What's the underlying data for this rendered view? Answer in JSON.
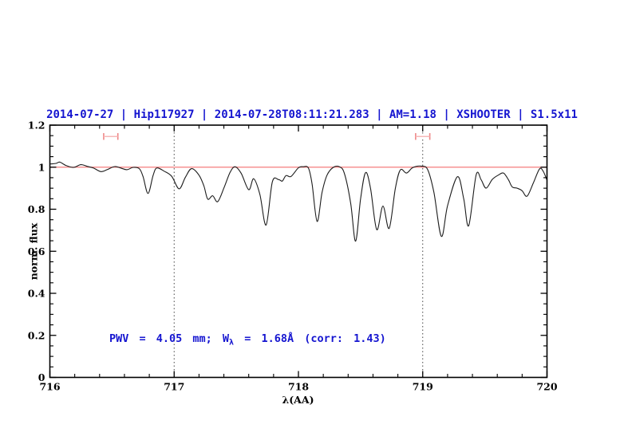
{
  "page": {
    "background": "#ffffff"
  },
  "title": {
    "text": "2014-07-27 | Hip117927 | 2014-07-28T08:11:21.283 | AM=1.18 | XSHOOTER | S1.5x11",
    "color": "#1515d0"
  },
  "annotation": {
    "text_before_sub": "PWV = 4.05 mm; W",
    "subscript": "λ",
    "text_after_sub": " = 1.68Å (corr: 1.43)",
    "color": "#1515d0"
  },
  "colors": {
    "accent_blue": "#1515d0",
    "continuum_red": "#f47c7c",
    "marker_red": "#ee8686",
    "marker_bar_red": "#f6b8b8",
    "spectrum_line": "#1c1c1c",
    "guide_line": "#444444",
    "axis": "#000000"
  },
  "chart_data": {
    "type": "line",
    "title": "2014-07-27 | Hip117927 | 2014-07-28T08:11:21.283 | AM=1.18 | XSHOOTER | S1.5x11",
    "xlabel": "λ(AA)",
    "ylabel": "norm. flux",
    "xlim": [
      716,
      720
    ],
    "ylim": [
      0,
      1.2
    ],
    "x_major_ticks": [
      716,
      717,
      718,
      719,
      720
    ],
    "x_tick_labels": [
      "716",
      "717",
      "718",
      "719",
      "720"
    ],
    "x_minor_step": 0.2,
    "y_major_ticks": [
      0,
      0.2,
      0.4,
      0.6,
      0.8,
      1,
      1.2
    ],
    "y_tick_labels": [
      "0",
      "0.2",
      "0.4",
      "0.6",
      "0.8",
      "1",
      "1.2"
    ],
    "y_minor_step": 0.05,
    "grid": false,
    "legend": null,
    "guide_lines_x": [
      717,
      719
    ],
    "continuum_line_y": 1.0,
    "markers": [
      {
        "x": 716.49,
        "xerr": 0.057,
        "y": 1.146,
        "cap_half_height": 0.016
      },
      {
        "x": 719.0,
        "xerr": 0.057,
        "y": 1.146,
        "cap_half_height": 0.016
      }
    ],
    "series": [
      {
        "name": "normalized spectrum",
        "points": [
          [
            716.0,
            1.015
          ],
          [
            716.05,
            1.018
          ],
          [
            716.08,
            1.024
          ],
          [
            716.13,
            1.008
          ],
          [
            716.19,
            0.999
          ],
          [
            716.25,
            1.012
          ],
          [
            716.3,
            1.004
          ],
          [
            716.35,
            0.996
          ],
          [
            716.41,
            0.979
          ],
          [
            716.46,
            0.988
          ],
          [
            716.52,
            1.003
          ],
          [
            716.57,
            0.996
          ],
          [
            716.62,
            0.988
          ],
          [
            716.67,
            0.999
          ],
          [
            716.72,
            0.993
          ],
          [
            716.75,
            0.955
          ],
          [
            716.79,
            0.875
          ],
          [
            716.83,
            0.96
          ],
          [
            716.86,
            0.996
          ],
          [
            716.92,
            0.981
          ],
          [
            716.98,
            0.957
          ],
          [
            717.04,
            0.897
          ],
          [
            717.09,
            0.952
          ],
          [
            717.14,
            0.993
          ],
          [
            717.2,
            0.962
          ],
          [
            717.24,
            0.91
          ],
          [
            717.27,
            0.848
          ],
          [
            717.31,
            0.864
          ],
          [
            717.35,
            0.836
          ],
          [
            717.4,
            0.9
          ],
          [
            717.45,
            0.975
          ],
          [
            717.49,
            1.002
          ],
          [
            717.54,
            0.97
          ],
          [
            717.6,
            0.893
          ],
          [
            717.64,
            0.945
          ],
          [
            717.69,
            0.87
          ],
          [
            717.74,
            0.725
          ],
          [
            717.79,
            0.93
          ],
          [
            717.84,
            0.941
          ],
          [
            717.87,
            0.934
          ],
          [
            717.9,
            0.96
          ],
          [
            717.94,
            0.956
          ],
          [
            718.0,
            0.997
          ],
          [
            718.04,
            1.002
          ],
          [
            718.08,
            0.996
          ],
          [
            718.11,
            0.92
          ],
          [
            718.15,
            0.742
          ],
          [
            718.19,
            0.88
          ],
          [
            718.23,
            0.962
          ],
          [
            718.28,
            0.999
          ],
          [
            718.33,
            1.002
          ],
          [
            718.37,
            0.97
          ],
          [
            718.42,
            0.83
          ],
          [
            718.46,
            0.648
          ],
          [
            718.5,
            0.85
          ],
          [
            718.54,
            0.974
          ],
          [
            718.58,
            0.9
          ],
          [
            718.63,
            0.703
          ],
          [
            718.68,
            0.815
          ],
          [
            718.73,
            0.709
          ],
          [
            718.78,
            0.9
          ],
          [
            718.82,
            0.987
          ],
          [
            718.87,
            0.972
          ],
          [
            718.92,
            0.998
          ],
          [
            718.99,
            1.005
          ],
          [
            719.04,
            0.988
          ],
          [
            719.09,
            0.88
          ],
          [
            719.15,
            0.671
          ],
          [
            719.2,
            0.817
          ],
          [
            719.28,
            0.955
          ],
          [
            719.33,
            0.85
          ],
          [
            719.37,
            0.722
          ],
          [
            719.43,
            0.963
          ],
          [
            719.47,
            0.94
          ],
          [
            719.51,
            0.9
          ],
          [
            719.56,
            0.942
          ],
          [
            719.61,
            0.963
          ],
          [
            719.65,
            0.972
          ],
          [
            719.69,
            0.94
          ],
          [
            719.72,
            0.906
          ],
          [
            719.76,
            0.9
          ],
          [
            719.8,
            0.888
          ],
          [
            719.84,
            0.862
          ],
          [
            719.89,
            0.925
          ],
          [
            719.94,
            0.992
          ],
          [
            719.97,
            0.98
          ],
          [
            720.0,
            0.938
          ]
        ]
      }
    ]
  }
}
